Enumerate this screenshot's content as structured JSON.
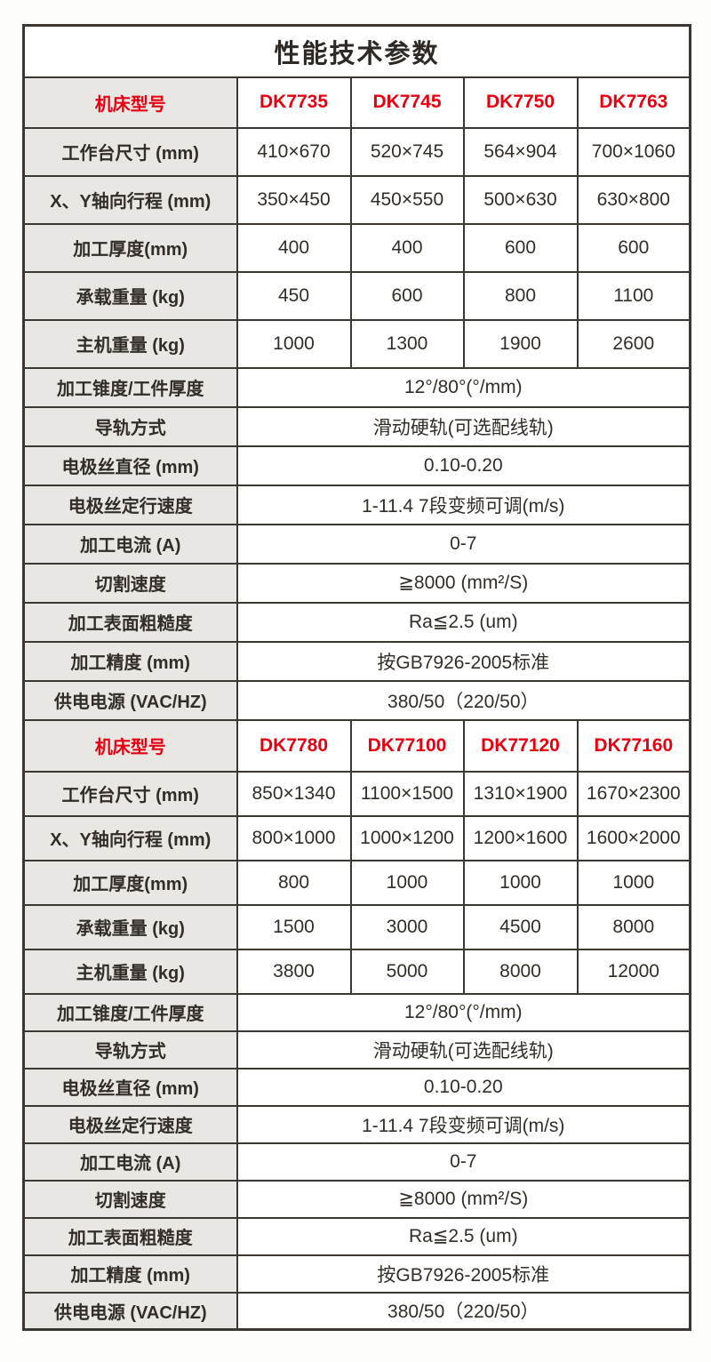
{
  "title": "性能技术参数",
  "colors": {
    "accent_red": "#e60012",
    "border": "#3d3731",
    "label_bg": "#e9e7e4",
    "text": "#332d27",
    "cell_bg": "#ffffff"
  },
  "sections": [
    {
      "model_row_label": "机床型号",
      "models": [
        "DK7735",
        "DK7745",
        "DK7750",
        "DK7763"
      ],
      "spec_rows": [
        {
          "label": "工作台尺寸 (mm)",
          "values": [
            "410×670",
            "520×745",
            "564×904",
            "700×1060"
          ]
        },
        {
          "label": "X、Y轴向行程 (mm)",
          "values": [
            "350×450",
            "450×550",
            "500×630",
            "630×800"
          ]
        },
        {
          "label": "加工厚度(mm)",
          "values": [
            "400",
            "400",
            "600",
            "600"
          ]
        },
        {
          "label": "承载重量 (kg)",
          "values": [
            "450",
            "600",
            "800",
            "1100"
          ]
        },
        {
          "label": "主机重量 (kg)",
          "values": [
            "1000",
            "1300",
            "1900",
            "2600"
          ]
        }
      ],
      "span_rows": [
        {
          "label": "加工锥度/工件厚度",
          "value": "12°/80°(°/mm)"
        },
        {
          "label": "导轨方式",
          "value": "滑动硬轨(可选配线轨)"
        },
        {
          "label": "电极丝直径 (mm)",
          "value": "0.10-0.20"
        },
        {
          "label": "电极丝定行速度",
          "value": "1-11.4 7段变频可调(m/s)"
        },
        {
          "label": "加工电流 (A)",
          "value": "0-7"
        },
        {
          "label": "切割速度",
          "value": "≧8000 (mm²/S)"
        },
        {
          "label": "加工表面粗糙度",
          "value": "Ra≦2.5 (um)"
        },
        {
          "label": "加工精度 (mm)",
          "value": "按GB7926-2005标准"
        },
        {
          "label": "供电电源 (VAC/HZ)",
          "value": "380/50（220/50）"
        }
      ]
    },
    {
      "model_row_label": "机床型号",
      "models": [
        "DK7780",
        "DK77100",
        "DK77120",
        "DK77160"
      ],
      "spec_rows": [
        {
          "label": "工作台尺寸 (mm)",
          "values": [
            "850×1340",
            "1100×1500",
            "1310×1900",
            "1670×2300"
          ]
        },
        {
          "label": "X、Y轴向行程 (mm)",
          "values": [
            "800×1000",
            "1000×1200",
            "1200×1600",
            "1600×2000"
          ]
        },
        {
          "label": "加工厚度(mm)",
          "values": [
            "800",
            "1000",
            "1000",
            "1000"
          ]
        },
        {
          "label": "承载重量 (kg)",
          "values": [
            "1500",
            "3000",
            "4500",
            "8000"
          ]
        },
        {
          "label": "主机重量 (kg)",
          "values": [
            "3800",
            "5000",
            "8000",
            "12000"
          ]
        }
      ],
      "span_rows": [
        {
          "label": "加工锥度/工件厚度",
          "value": "12°/80°(°/mm)"
        },
        {
          "label": "导轨方式",
          "value": "滑动硬轨(可选配线轨)"
        },
        {
          "label": "电极丝直径 (mm)",
          "value": "0.10-0.20"
        },
        {
          "label": "电极丝定行速度",
          "value": "1-11.4 7段变频可调(m/s)"
        },
        {
          "label": "加工电流 (A)",
          "value": "0-7"
        },
        {
          "label": "切割速度",
          "value": "≧8000 (mm²/S)"
        },
        {
          "label": "加工表面粗糙度",
          "value": "Ra≦2.5 (um)"
        },
        {
          "label": "加工精度 (mm)",
          "value": "按GB7926-2005标准"
        },
        {
          "label": "供电电源 (VAC/HZ)",
          "value": "380/50（220/50）"
        }
      ]
    }
  ]
}
